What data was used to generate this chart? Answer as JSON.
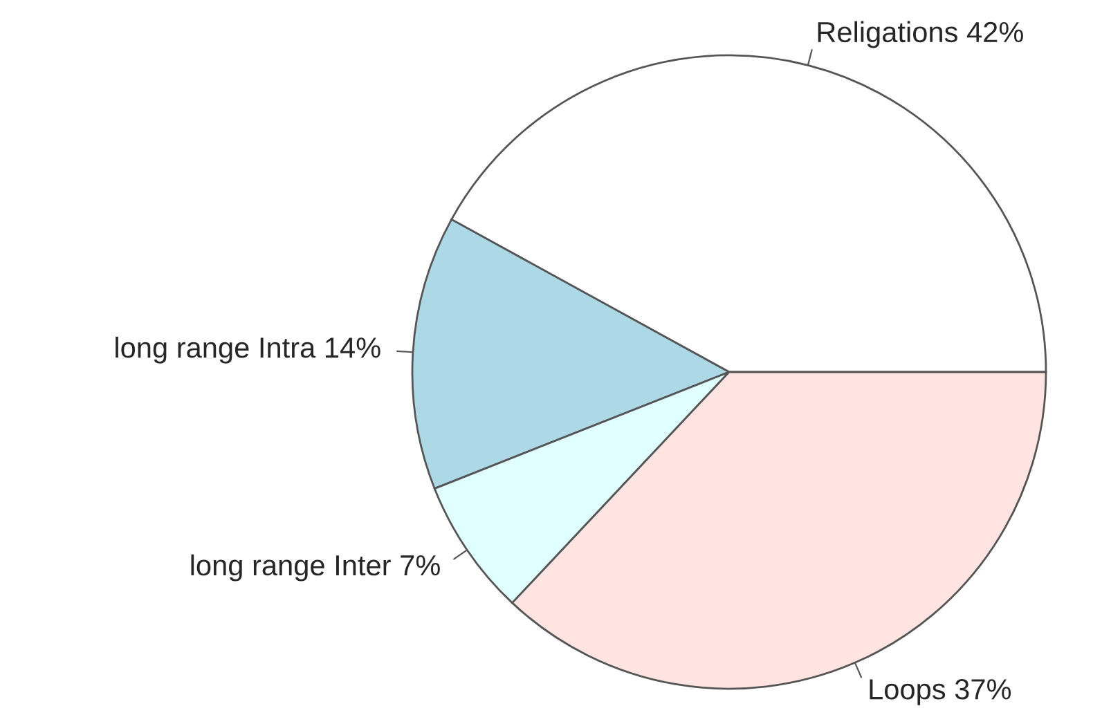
{
  "chart_data": {
    "type": "pie",
    "categories": [
      "Religations",
      "long range Intra",
      "long range Inter",
      "Loops"
    ],
    "values": [
      42,
      14,
      7,
      37
    ],
    "value_labels": [
      "42%",
      "14%",
      "7%",
      "37%"
    ],
    "colors": [
      "#ffffff",
      "#add8e6",
      "#e0ffff",
      "#ffe4e1"
    ],
    "legend": false
  }
}
